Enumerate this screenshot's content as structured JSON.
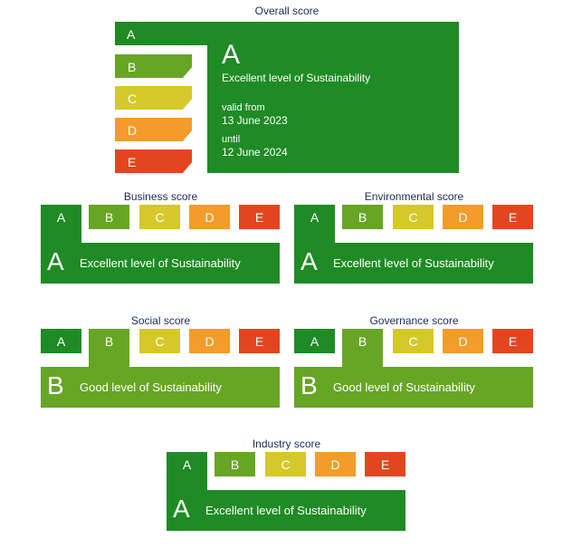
{
  "grade_colors": [
    "#1f8b24",
    "#67a524",
    "#d5c82a",
    "#f39c2b",
    "#e3461f"
  ],
  "overall": {
    "title": "Overall score",
    "grades": [
      "A",
      "B",
      "C",
      "D",
      "E"
    ],
    "grade": "A",
    "description": "Excellent level of Sustainability",
    "valid_from_label": "valid from",
    "valid_from": "13 June 2023",
    "until_label": "until",
    "until": "12 June 2024"
  },
  "scores": [
    {
      "title": "Business score",
      "grades": [
        "A",
        "B",
        "C",
        "D",
        "E"
      ],
      "grade": "A",
      "description": "Excellent level of Sustainability"
    },
    {
      "title": "Environmental score",
      "grades": [
        "A",
        "B",
        "C",
        "D",
        "E"
      ],
      "grade": "A",
      "description": "Excellent level of Sustainability"
    },
    {
      "title": "Social score",
      "grades": [
        "A",
        "B",
        "C",
        "D",
        "E"
      ],
      "grade": "B",
      "description": "Good level of Sustainability"
    },
    {
      "title": "Governance score",
      "grades": [
        "A",
        "B",
        "C",
        "D",
        "E"
      ],
      "grade": "B",
      "description": "Good level of Sustainability"
    },
    {
      "title": "Industry score",
      "grades": [
        "A",
        "B",
        "C",
        "D",
        "E"
      ],
      "grade": "A",
      "description": "Excellent level of Sustainability"
    }
  ]
}
